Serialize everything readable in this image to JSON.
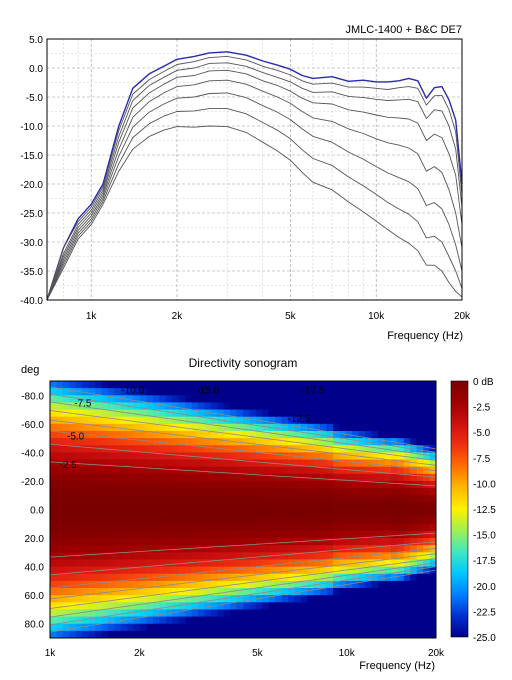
{
  "chart_data": [
    {
      "type": "line",
      "title": "JMLC-1400 + B&C DE7",
      "xlabel": "Frequency (Hz)",
      "ylabel": "",
      "x_scale": "log",
      "xlim": [
        700,
        20000
      ],
      "ylim": [
        -40,
        5
      ],
      "grid": true,
      "x_tick_labels": [
        {
          "value": 1000,
          "label": "1k"
        },
        {
          "value": 2000,
          "label": "2k"
        },
        {
          "value": 5000,
          "label": "5k"
        },
        {
          "value": 10000,
          "label": "10k"
        },
        {
          "value": 20000,
          "label": "20k"
        }
      ],
      "y_tick_labels": [
        {
          "value": 5,
          "label": "5.0"
        },
        {
          "value": 0,
          "label": "0.0"
        },
        {
          "value": -5,
          "label": "-5.0"
        },
        {
          "value": -10,
          "label": "-10.0"
        },
        {
          "value": -15,
          "label": "-15.0"
        },
        {
          "value": -20,
          "label": "-20.0"
        },
        {
          "value": -25,
          "label": "-25.0"
        },
        {
          "value": -30,
          "label": "-30.0"
        },
        {
          "value": -35,
          "label": "-35.0"
        },
        {
          "value": -40,
          "label": "-40.0"
        }
      ],
      "x": [
        700,
        800,
        900,
        1000,
        1100,
        1250,
        1400,
        1600,
        1800,
        2000,
        2300,
        2600,
        3000,
        3500,
        4000,
        4500,
        5000,
        5500,
        6000,
        7000,
        8000,
        9000,
        10000,
        11000,
        12000,
        13000,
        14000,
        15000,
        16000,
        17000,
        18000,
        19000,
        20000
      ],
      "series": [
        {
          "values": [
            -40,
            -31,
            -26,
            -23.5,
            -20,
            -10,
            -3.5,
            -1,
            0.3,
            1.5,
            2,
            2.6,
            2.8,
            2.2,
            1.2,
            0.5,
            -0.2,
            -1.3,
            -1.8,
            -1.5,
            -2.3,
            -2.1,
            -2.4,
            -2.4,
            -2.2,
            -1.8,
            -2.2,
            -5.2,
            -3.4,
            -3.2,
            -5.5,
            -9,
            -20
          ],
          "color": "#2a2ab0"
        },
        {
          "values": [
            -40,
            -31,
            -26.5,
            -24,
            -20.5,
            -10.8,
            -4.5,
            -2,
            -0.6,
            0.6,
            1.1,
            1.8,
            2,
            1.4,
            0.3,
            -0.4,
            -1.2,
            -2.2,
            -2.8,
            -2.6,
            -3.3,
            -3.3,
            -3.5,
            -3.7,
            -3.4,
            -3.2,
            -3.5,
            -6.4,
            -4.8,
            -4.7,
            -7.2,
            -11,
            -22
          ],
          "color": "#555555"
        },
        {
          "values": [
            -40,
            -32,
            -27,
            -24.5,
            -21,
            -11.8,
            -5.6,
            -3,
            -1.6,
            -0.4,
            0,
            0.8,
            0.9,
            0.3,
            -0.8,
            -1.6,
            -2.4,
            -3.5,
            -4.2,
            -4.1,
            -4.9,
            -5.1,
            -5.4,
            -5.6,
            -5.5,
            -5.4,
            -5.8,
            -8.7,
            -7.2,
            -7.4,
            -10,
            -14,
            -24
          ],
          "color": "#555555"
        },
        {
          "values": [
            -40,
            -32.5,
            -27.5,
            -25,
            -21.5,
            -12.8,
            -6.9,
            -4.3,
            -2.8,
            -1.6,
            -1.3,
            -0.5,
            -0.4,
            -1,
            -2.2,
            -3,
            -4,
            -5.2,
            -6,
            -6.2,
            -7.2,
            -7.6,
            -8.1,
            -8.5,
            -8.6,
            -8.8,
            -9.5,
            -12.5,
            -11.4,
            -12,
            -14.8,
            -18.5,
            -27
          ],
          "color": "#555555"
        },
        {
          "values": [
            -40,
            -33,
            -28,
            -25.5,
            -22,
            -14,
            -8.5,
            -5.8,
            -4.3,
            -3.2,
            -2.9,
            -2.2,
            -2.1,
            -2.8,
            -4,
            -5,
            -6.1,
            -7.5,
            -8.6,
            -9.2,
            -10.5,
            -11.3,
            -12.2,
            -12.9,
            -13.3,
            -13.8,
            -14.8,
            -17.8,
            -17,
            -18,
            -21,
            -25,
            -31
          ],
          "color": "#555555"
        },
        {
          "values": [
            -40,
            -33.5,
            -28.5,
            -26,
            -22.5,
            -15.2,
            -10.2,
            -7.6,
            -6.2,
            -5.2,
            -5,
            -4.4,
            -4.3,
            -5.1,
            -6.5,
            -7.6,
            -8.9,
            -10.5,
            -11.8,
            -12.8,
            -14.5,
            -15.7,
            -17,
            -18.1,
            -18.9,
            -19.6,
            -20.8,
            -23.7,
            -23.2,
            -24.3,
            -27,
            -30.5,
            -35
          ],
          "color": "#555555"
        },
        {
          "values": [
            -40,
            -34,
            -29,
            -26.5,
            -23,
            -16.5,
            -12,
            -9.6,
            -8.3,
            -7.5,
            -7.4,
            -7,
            -7,
            -7.9,
            -9.4,
            -10.7,
            -12.2,
            -14.1,
            -15.6,
            -16.8,
            -18.8,
            -20.3,
            -21.8,
            -23.2,
            -24.3,
            -25.2,
            -26.5,
            -29.3,
            -29,
            -30,
            -32.5,
            -35,
            -38
          ],
          "color": "#555555"
        },
        {
          "values": [
            -40,
            -34.5,
            -29.5,
            -27,
            -23.5,
            -17.8,
            -14,
            -11.8,
            -10.7,
            -10.1,
            -10.2,
            -10,
            -10.1,
            -11.1,
            -12.8,
            -14.3,
            -15.9,
            -18,
            -19.7,
            -21,
            -23.1,
            -24.8,
            -26.4,
            -27.9,
            -29.2,
            -30.2,
            -31.5,
            -34,
            -34,
            -35,
            -37,
            -38.5,
            -39.5
          ],
          "color": "#555555"
        }
      ]
    },
    {
      "type": "heatmap",
      "title": "Directivity sonogram",
      "xlabel": "Frequency (Hz)",
      "ylabel": "deg",
      "x_scale": "log",
      "xlim": [
        1000,
        20000
      ],
      "ylim": [
        -90,
        90
      ],
      "x_tick_labels": [
        {
          "value": 1000,
          "label": "1k"
        },
        {
          "value": 2000,
          "label": "2k"
        },
        {
          "value": 5000,
          "label": "5k"
        },
        {
          "value": 10000,
          "label": "10k"
        },
        {
          "value": 20000,
          "label": "20k"
        }
      ],
      "y_tick_labels": [
        {
          "value": -80,
          "label": "-80.0"
        },
        {
          "value": -60,
          "label": "-60.0"
        },
        {
          "value": -40,
          "label": "-40.0"
        },
        {
          "value": -20,
          "label": "-20.0"
        },
        {
          "value": 0,
          "label": "0.0"
        },
        {
          "value": 20,
          "label": "20.0"
        },
        {
          "value": 40,
          "label": "40.0"
        },
        {
          "value": 60,
          "label": "60.0"
        },
        {
          "value": 80,
          "label": "80.0"
        }
      ],
      "colorbar": {
        "range": [
          -25,
          0
        ],
        "labels": [
          "0 dB",
          "-2.5",
          "-5.0",
          "-7.5",
          "-10.0",
          "-12.5",
          "-15.0",
          "-17.5",
          "-20.0",
          "-22.5",
          "-25.0"
        ],
        "colors": [
          "#7a0000",
          "#a00000",
          "#cc1010",
          "#ee3010",
          "#ff7000",
          "#ffb800",
          "#fff000",
          "#a0f050",
          "#40e8c0",
          "#00c8ff",
          "#0080ff",
          "#0030d0",
          "#00008a"
        ]
      },
      "contour_labels": [
        {
          "text": "-2.5",
          "freq": 1150,
          "deg": -32
        },
        {
          "text": "-5.0",
          "freq": 1220,
          "deg": -52
        },
        {
          "text": "-7.5",
          "freq": 1290,
          "deg": -75
        },
        {
          "text": "-10.0",
          "freq": 1900,
          "deg": -84
        },
        {
          "text": "-15.0",
          "freq": 3400,
          "deg": -84
        },
        {
          "text": "-17.5",
          "freq": 7700,
          "deg": -84
        },
        {
          "text": "-12.5",
          "freq": 6900,
          "deg": -64
        }
      ],
      "contour_levels": [
        -2.5,
        -5,
        -7.5,
        -10,
        -12.5,
        -15,
        -17.5,
        -20
      ]
    }
  ]
}
